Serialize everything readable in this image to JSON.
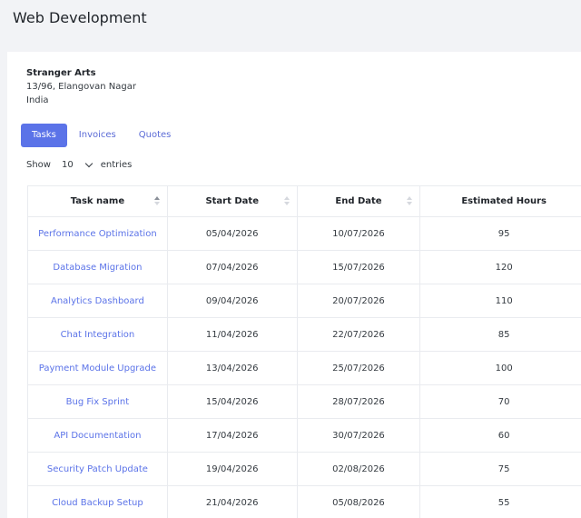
{
  "page": {
    "title": "Web Development"
  },
  "client": {
    "name": "Stranger Arts",
    "address_line1": "13/96, Elangovan Nagar",
    "country": "India"
  },
  "tabs": [
    {
      "label": "Tasks",
      "active": true
    },
    {
      "label": "Invoices",
      "active": false
    },
    {
      "label": "Quotes",
      "active": false
    }
  ],
  "length_menu": {
    "show_label": "Show",
    "value": "10",
    "entries_label": "entries"
  },
  "table": {
    "columns": [
      "Task name",
      "Start Date",
      "End Date",
      "Estimated Hours"
    ],
    "rows": [
      {
        "task": "Performance Optimization",
        "start": "05/04/2026",
        "end": "10/07/2026",
        "hours": "95"
      },
      {
        "task": "Database Migration",
        "start": "07/04/2026",
        "end": "15/07/2026",
        "hours": "120"
      },
      {
        "task": "Analytics Dashboard",
        "start": "09/04/2026",
        "end": "20/07/2026",
        "hours": "110"
      },
      {
        "task": "Chat Integration",
        "start": "11/04/2026",
        "end": "22/07/2026",
        "hours": "85"
      },
      {
        "task": "Payment Module Upgrade",
        "start": "13/04/2026",
        "end": "25/07/2026",
        "hours": "100"
      },
      {
        "task": "Bug Fix Sprint",
        "start": "15/04/2026",
        "end": "28/07/2026",
        "hours": "70"
      },
      {
        "task": "API Documentation",
        "start": "17/04/2026",
        "end": "30/07/2026",
        "hours": "60"
      },
      {
        "task": "Security Patch Update",
        "start": "19/04/2026",
        "end": "02/08/2026",
        "hours": "75"
      },
      {
        "task": "Cloud Backup Setup",
        "start": "21/04/2026",
        "end": "05/08/2026",
        "hours": "55"
      }
    ]
  },
  "colors": {
    "accent": "#5b73e8",
    "background": "#f2f3f6",
    "card": "#ffffff"
  }
}
